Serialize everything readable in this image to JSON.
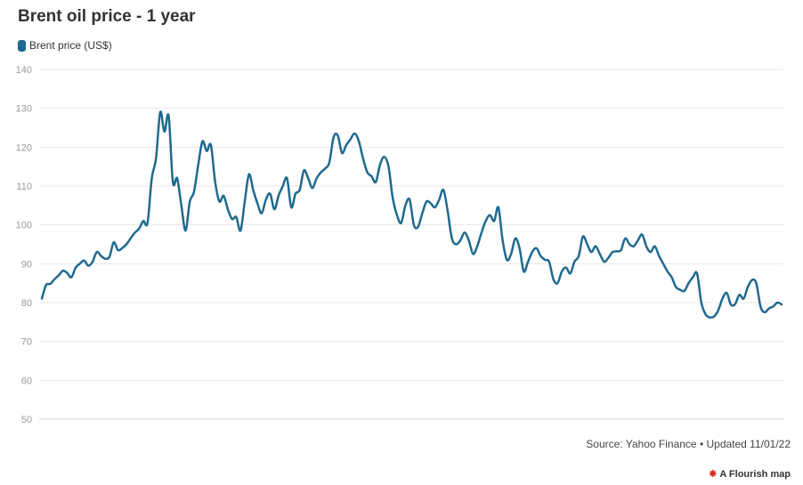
{
  "title": "Brent oil price - 1 year",
  "source_text": "Source: Yahoo Finance • Updated 11/01/22",
  "attribution": {
    "icon": "flourish-logo-icon",
    "text": "A Flourish map"
  },
  "colors": {
    "series": "#1f6a8f",
    "grid": "#e8e8e8",
    "axis_text": "#999999"
  },
  "chart_data": {
    "type": "line",
    "title": "Brent oil price - 1 year",
    "xlabel": "",
    "ylabel": "",
    "ylim": [
      50,
      140
    ],
    "y_ticks": [
      50,
      60,
      70,
      80,
      90,
      100,
      110,
      120,
      130,
      140
    ],
    "grid": true,
    "legend_position": "top-left",
    "series": [
      {
        "name": "Brent price (US$)",
        "values": [
          81,
          84.5,
          84.8,
          86,
          87,
          88.2,
          87.6,
          86.5,
          89,
          90,
          90.8,
          89.5,
          90.5,
          93,
          92,
          91.3,
          91.8,
          95.5,
          93.5,
          94,
          95,
          96.5,
          98,
          99,
          101,
          100.5,
          112,
          117,
          129,
          124,
          128,
          111,
          112,
          105,
          98.5,
          106,
          108.5,
          115.5,
          121.5,
          119,
          120.5,
          111,
          106,
          107.5,
          104,
          101.5,
          102,
          98.5,
          106,
          113,
          109,
          105.5,
          103,
          106.5,
          108,
          104,
          107.5,
          110,
          112,
          104.5,
          108,
          109,
          114,
          112,
          109.5,
          112,
          113.5,
          114.5,
          116,
          122.5,
          123,
          118.5,
          120.5,
          122,
          123.5,
          121.5,
          117,
          113.5,
          112.5,
          111,
          115.5,
          117.5,
          115,
          107,
          102.5,
          100.5,
          105,
          106.5,
          100,
          99.5,
          103,
          106,
          105.5,
          104.5,
          106.5,
          109,
          103.5,
          96.5,
          95,
          96,
          98,
          96,
          92.5,
          94.5,
          98,
          101,
          102.5,
          101,
          104.5,
          96,
          91,
          92.5,
          96.5,
          94,
          88,
          90.5,
          93,
          94,
          92,
          91,
          90.5,
          86,
          85,
          88,
          89,
          87.5,
          90.5,
          92,
          97,
          95,
          93,
          94.5,
          92.5,
          90.5,
          91.5,
          93,
          93.2,
          93.5,
          96.5,
          95,
          94.5,
          96,
          97.5,
          94.5,
          93,
          94.5,
          92,
          90,
          88,
          86.5,
          84,
          83.3,
          83,
          85,
          86.5,
          87.5,
          80,
          77,
          76.2,
          76.4,
          78,
          81,
          82.5,
          79.5,
          79.6,
          82,
          81,
          84,
          85.8,
          85,
          79,
          77.5,
          78.5,
          79,
          80,
          79.5
        ]
      }
    ]
  }
}
